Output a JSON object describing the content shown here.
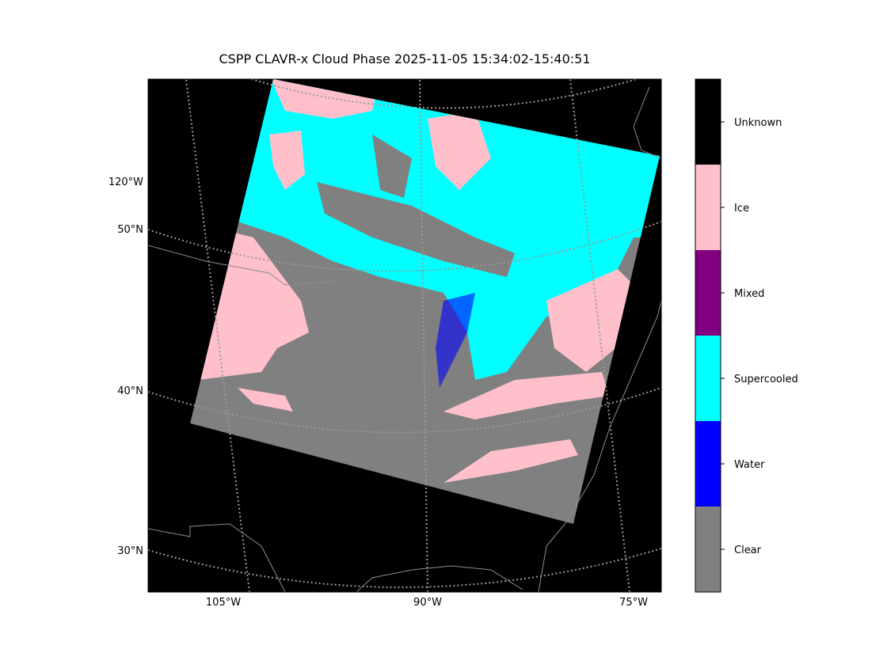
{
  "title": "CSPP CLAVR-x Cloud Phase 2025-11-05 15:34:02-15:40:51",
  "map": {
    "lat_labels": [
      "120°W",
      "50°N",
      "40°N",
      "30°N"
    ],
    "lon_labels": [
      "105°W",
      "90°W",
      "75°W"
    ]
  },
  "colorbar": {
    "classes": [
      {
        "name": "Clear",
        "color": "#808080"
      },
      {
        "name": "Water",
        "color": "#0000ff"
      },
      {
        "name": "Supercooled",
        "color": "#00ffff"
      },
      {
        "name": "Mixed",
        "color": "#800080"
      },
      {
        "name": "Ice",
        "color": "#ffc0cb"
      },
      {
        "name": "Unknown",
        "color": "#000000"
      }
    ]
  }
}
